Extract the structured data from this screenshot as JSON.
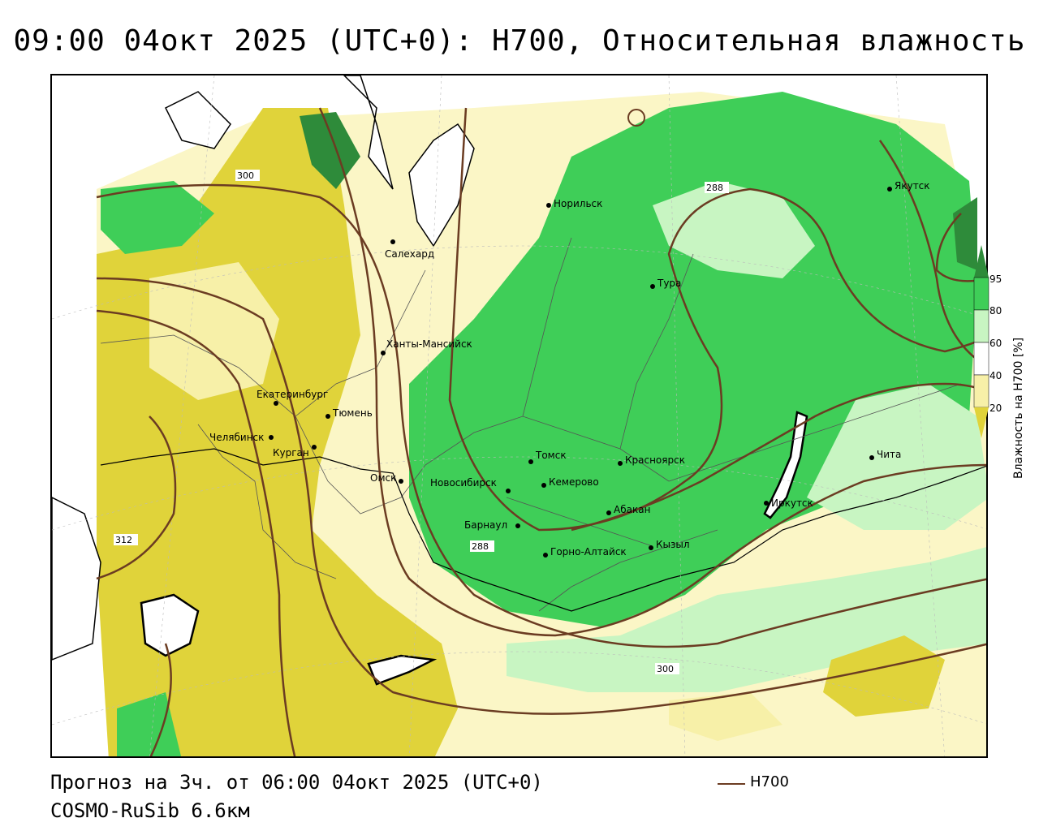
{
  "title": "09:00 04окт 2025 (UTC+0): H700, Относительная влажность",
  "footer": {
    "forecast": "Прогноз на 3ч. от 06:00 04окт 2025 (UTC+0)",
    "model": "COSMO-RuSib 6.6км"
  },
  "legend": {
    "series_label": "H700",
    "line_color": "#6b3c22"
  },
  "colorbar": {
    "title": "Влажность на H700 [%]",
    "ticks": [
      "95",
      "80",
      "60",
      "40",
      "20"
    ],
    "colors": {
      "c95": "#2e8b3a",
      "c80": "#3fce58",
      "c60": "#c8f5c2",
      "c40": "#ffffff",
      "c20": "#f7f0a8",
      "c0": "#e0d33a"
    }
  },
  "cities": [
    {
      "name": "Якутск"
    },
    {
      "name": "Норильск"
    },
    {
      "name": "Салехард"
    },
    {
      "name": "Тура"
    },
    {
      "name": "Ханты-Мансийск"
    },
    {
      "name": "Екатеринбург"
    },
    {
      "name": "Тюмень"
    },
    {
      "name": "Челябинск"
    },
    {
      "name": "Курган"
    },
    {
      "name": "Омск"
    },
    {
      "name": "Новосибирск"
    },
    {
      "name": "Томск"
    },
    {
      "name": "Красноярск"
    },
    {
      "name": "Кемерово"
    },
    {
      "name": "Абакан"
    },
    {
      "name": "Барнаул"
    },
    {
      "name": "Горно-Алтайск"
    },
    {
      "name": "Кызыл"
    },
    {
      "name": "Иркутск"
    },
    {
      "name": "Чита"
    }
  ],
  "contour_labels": [
    "300",
    "288",
    "312",
    "288",
    "300"
  ]
}
